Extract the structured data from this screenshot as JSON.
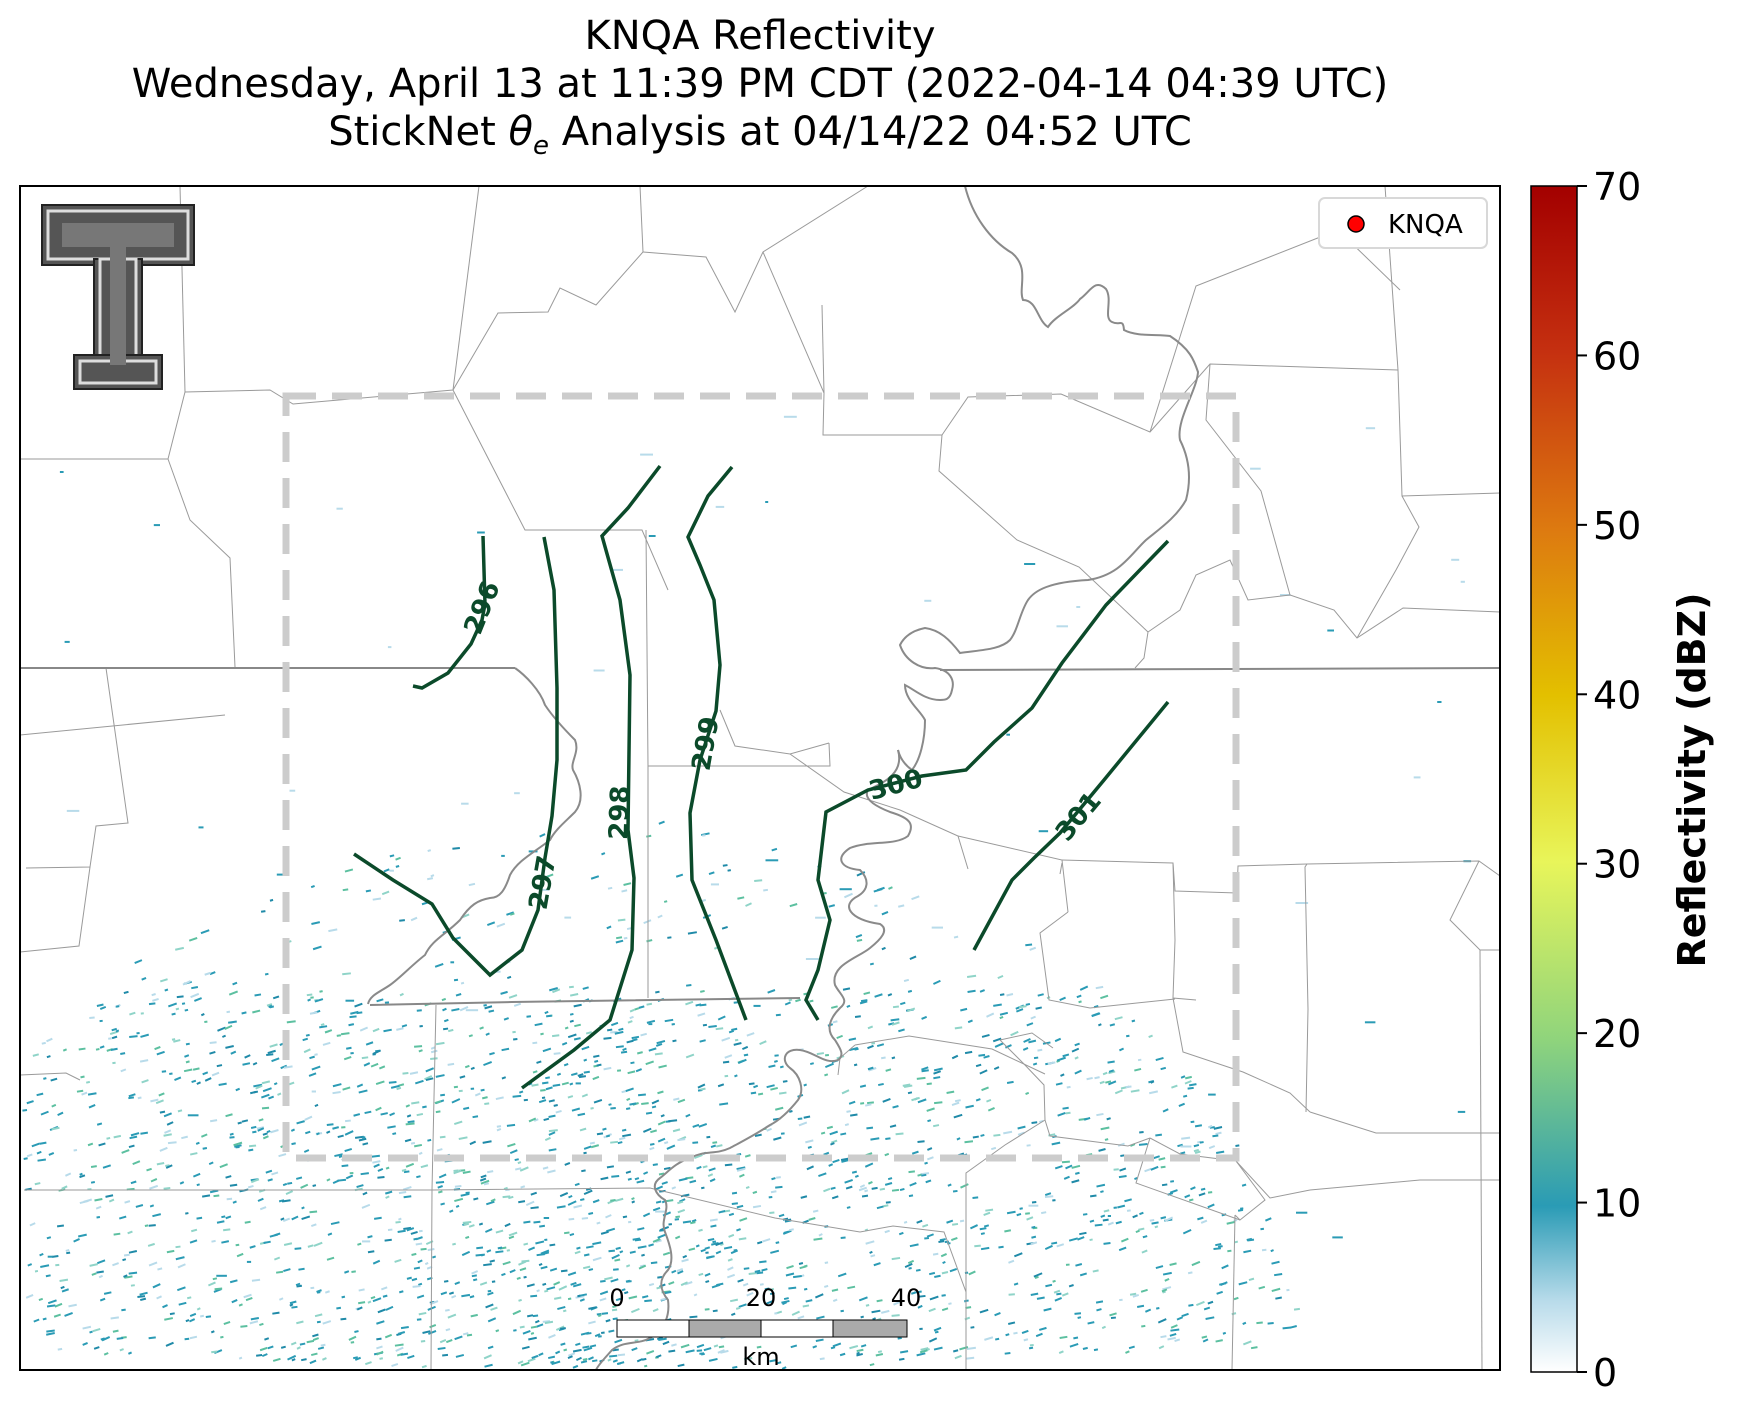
{
  "title": {
    "line1": "KNQA Reflectivity",
    "line2": "Wednesday, April 13 at 11:39 PM CDT (2022-04-14 04:39 UTC)",
    "line3_prefix": "StickNet ",
    "line3_symbol": "θ",
    "line3_subscript": "e",
    "line3_suffix": " Analysis at 04/14/22 04:52 UTC"
  },
  "legend": {
    "label": "KNQA",
    "marker_color": "#ff0000"
  },
  "colorbar": {
    "label": "Reflectivity (dBZ)",
    "min": 0,
    "max": 70,
    "ticks": [
      "0",
      "10",
      "20",
      "30",
      "40",
      "50",
      "60",
      "70"
    ]
  },
  "scale_bar": {
    "ticks": [
      "0",
      "20",
      "40"
    ],
    "unit": "km"
  },
  "contours": [
    {
      "value": "296"
    },
    {
      "value": "297"
    },
    {
      "value": "298"
    },
    {
      "value": "299"
    },
    {
      "value": "300"
    },
    {
      "value": "301"
    }
  ],
  "colors": {
    "contour": "#0b4a2a",
    "box": "#cccccc",
    "border": "#888888",
    "river": "#888888",
    "county": "#9a9a9a",
    "echo": "#2a9bb5"
  },
  "logo": {
    "name": "texas-tech-double-t-logo"
  }
}
